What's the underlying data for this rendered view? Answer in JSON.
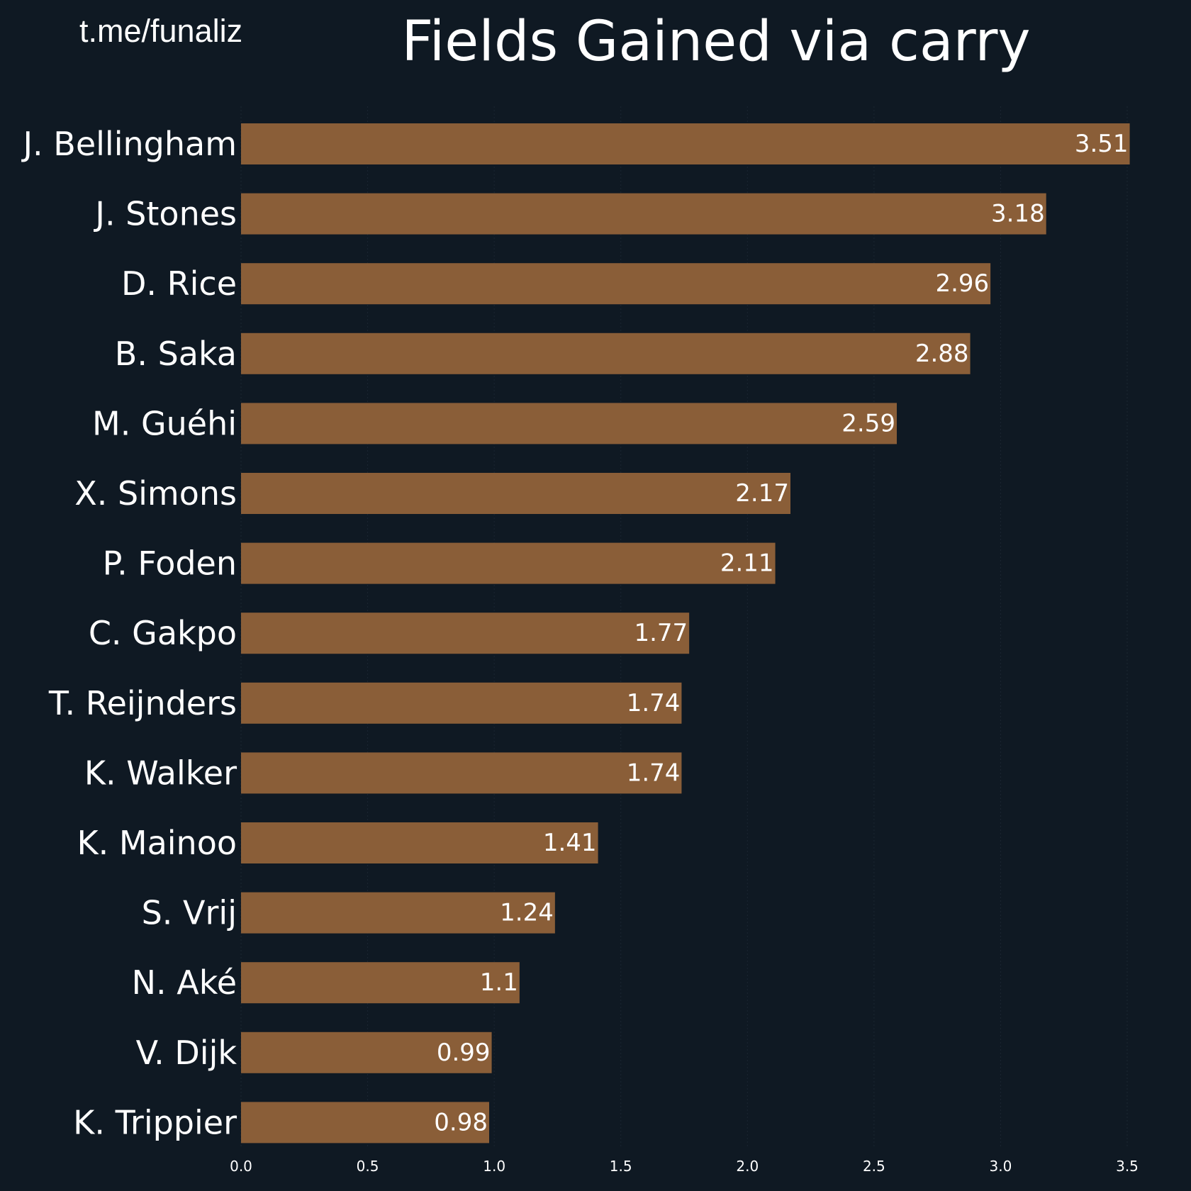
{
  "watermark": "t.me/funaliz",
  "colors": {
    "background": "#0f1923",
    "bar": "#8a5e38",
    "text": "#ffffff",
    "grid": "#1b2632"
  },
  "chart_data": {
    "type": "bar",
    "orientation": "horizontal",
    "title": "Fields Gained via carry",
    "xlabel": "",
    "ylabel": "",
    "categories": [
      "J. Bellingham",
      "J. Stones",
      "D. Rice",
      "B. Saka",
      "M. Guéhi",
      "X. Simons",
      "P. Foden",
      "C. Gakpo",
      "T. Reijnders",
      "K. Walker",
      "K. Mainoo",
      "S. Vrij",
      "N. Aké",
      "V. Dijk",
      "K. Trippier"
    ],
    "values": [
      3.51,
      3.18,
      2.96,
      2.88,
      2.59,
      2.17,
      2.11,
      1.77,
      1.74,
      1.74,
      1.41,
      1.24,
      1.1,
      0.99,
      0.98
    ],
    "data_labels": [
      "3.51",
      "3.18",
      "2.96",
      "2.88",
      "2.59",
      "2.17",
      "2.11",
      "1.77",
      "1.74",
      "1.74",
      "1.41",
      "1.24",
      "1.1",
      "0.99",
      "0.98"
    ],
    "xlim": [
      0,
      3.5
    ],
    "xticks": [
      "0.0",
      "0.5",
      "1.0",
      "1.5",
      "2.0",
      "2.5",
      "3.0",
      "3.5"
    ],
    "grid": true,
    "legend": "none"
  }
}
